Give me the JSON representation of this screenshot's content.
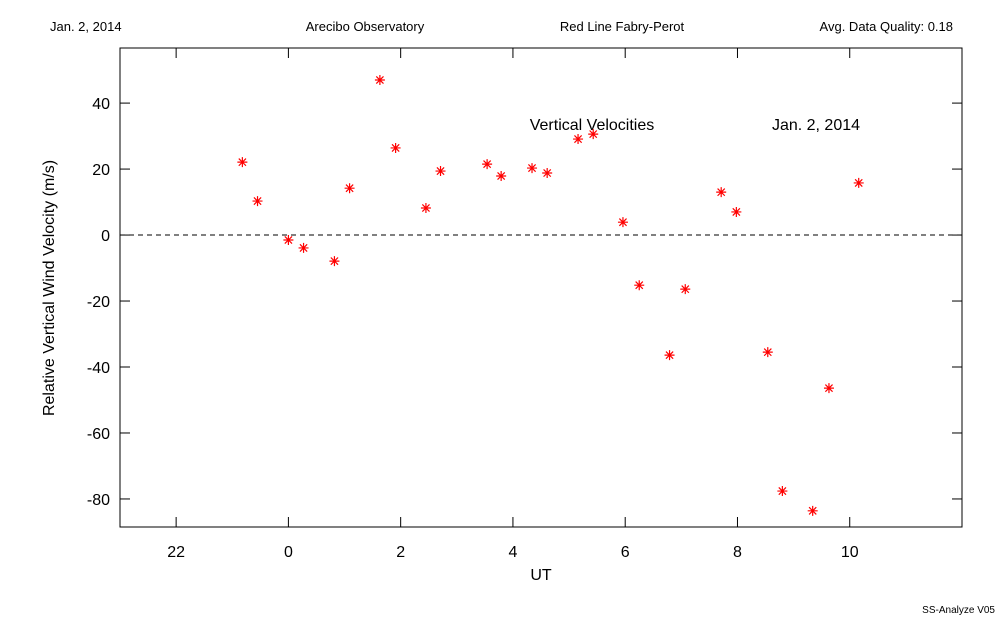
{
  "header": {
    "date": "Jan. 2, 2014",
    "site": "Arecibo Observatory",
    "instrument": "Red Line Fabry-Perot",
    "quality": "Avg. Data Quality: 0.18"
  },
  "footer": "SS-Analyze V05",
  "chart_data": {
    "type": "scatter",
    "annotations": [
      "Vertical Velocities",
      "Jan. 2, 2014"
    ],
    "xlabel": "UT",
    "ylabel": "Relative Vertical Wind Velocity (m/s)",
    "color": "#ff0000",
    "reference_line": 0,
    "x": [
      -0.82,
      -0.55,
      0.0,
      0.27,
      0.82,
      1.09,
      1.63,
      1.91,
      2.45,
      2.71,
      3.54,
      3.79,
      4.34,
      4.61,
      5.16,
      5.43,
      5.96,
      6.25,
      6.79,
      7.07,
      7.71,
      7.98,
      8.54,
      8.8,
      9.34,
      9.63,
      10.16
    ],
    "values": [
      22.1,
      10.3,
      -1.5,
      -3.9,
      -7.9,
      14.2,
      47.0,
      26.4,
      8.2,
      19.4,
      21.5,
      17.9,
      20.3,
      18.8,
      29.1,
      30.6,
      3.9,
      -15.2,
      -36.4,
      -16.4,
      13.0,
      7.0,
      -35.5,
      -77.6,
      -83.6,
      -46.4,
      15.8
    ],
    "xlim": [
      -3,
      12
    ],
    "xticks": [
      {
        "value": -2,
        "label": "22"
      },
      0,
      2,
      4,
      6,
      8,
      10
    ],
    "ylim": [
      -88.5,
      56.7
    ],
    "yticks": [
      -80,
      -60,
      -40,
      -20,
      0,
      20,
      40
    ]
  }
}
